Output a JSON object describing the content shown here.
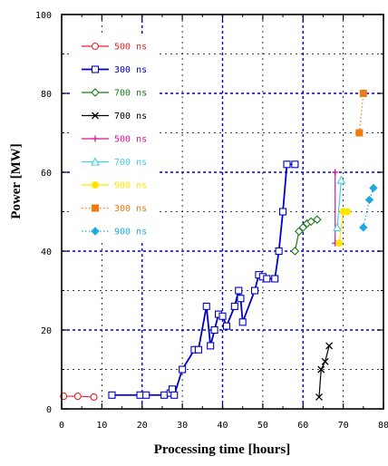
{
  "colors": {
    "background": "#ffffff",
    "axis": "#000000",
    "grid_major": "#0000cc",
    "grid_minor": "#000000"
  },
  "chart_data": {
    "type": "line",
    "title": "",
    "xlabel": "Processing time [hours]",
    "ylabel": "Power  [MW]",
    "xlim": [
      0,
      80
    ],
    "ylim": [
      0,
      100
    ],
    "x_ticks": [
      0,
      10,
      20,
      30,
      40,
      50,
      60,
      70,
      80
    ],
    "y_ticks": [
      0,
      20,
      40,
      60,
      80,
      100
    ],
    "x_tick_labels": [
      "0",
      "10",
      "20",
      "30",
      "40",
      "50",
      "60",
      "70",
      "80"
    ],
    "y_tick_labels": [
      "0",
      "20",
      "40",
      "60",
      "80",
      "100"
    ],
    "grid": true,
    "legend_position": "top-left",
    "series": [
      {
        "name": "500  ns",
        "color": "#e8232a",
        "marker": "circle-open",
        "line": "solid",
        "points": [
          [
            0.5,
            3.2
          ],
          [
            4,
            3.2
          ],
          [
            8,
            3
          ]
        ]
      },
      {
        "name": "300  ns",
        "color": "#0000c8",
        "marker": "square-open",
        "line": "solid",
        "points": [
          [
            12.5,
            3.5
          ],
          [
            19.5,
            3.5
          ],
          [
            21,
            3.5
          ],
          [
            25.5,
            3.5
          ],
          [
            27,
            4
          ],
          [
            27.5,
            5
          ],
          [
            28,
            3.5
          ],
          [
            30,
            10
          ],
          [
            33,
            15
          ],
          [
            34,
            15
          ],
          [
            36,
            26
          ],
          [
            37,
            16
          ],
          [
            38,
            20
          ],
          [
            39,
            24
          ],
          [
            40,
            23.5
          ],
          [
            41,
            21
          ],
          [
            43,
            26
          ],
          [
            44,
            30
          ],
          [
            44.5,
            28
          ],
          [
            45,
            22
          ],
          [
            48,
            30
          ],
          [
            49,
            34
          ],
          [
            50,
            33.5
          ],
          [
            51,
            33
          ],
          [
            53,
            33
          ],
          [
            54,
            40
          ],
          [
            55,
            50
          ],
          [
            56,
            62
          ],
          [
            58,
            62
          ]
        ]
      },
      {
        "name": "700  ns",
        "color": "#1a7a1a",
        "marker": "diamond-open",
        "line": "solid",
        "points": [
          [
            58,
            40
          ],
          [
            59,
            45
          ],
          [
            60,
            46
          ],
          [
            61,
            47
          ],
          [
            62,
            47.5
          ],
          [
            63.5,
            48
          ]
        ]
      },
      {
        "name": "700 ns",
        "color": "#000000",
        "marker": "x",
        "line": "solid",
        "points": [
          [
            64,
            3
          ],
          [
            64.5,
            10
          ],
          [
            65.5,
            12
          ],
          [
            66.5,
            16
          ]
        ]
      },
      {
        "name": "500  ns",
        "color": "#e0129a",
        "marker": "plus",
        "line": "solid",
        "points": [
          [
            68,
            42
          ],
          [
            68,
            60
          ]
        ]
      },
      {
        "name": "700  ns",
        "color": "#40d0e8",
        "marker": "triangle-open",
        "line": "solid",
        "points": [
          [
            68.5,
            46
          ],
          [
            69.5,
            58
          ]
        ]
      },
      {
        "name": "900  ns",
        "color": "#ffe600",
        "marker": "circle-filled",
        "line": "solid",
        "points": [
          [
            69,
            42
          ],
          [
            70,
            50
          ],
          [
            71,
            50
          ]
        ]
      },
      {
        "name": "300  ns",
        "color": "#f07a10",
        "marker": "square-filled",
        "line": "dotted",
        "points": [
          [
            74,
            70
          ],
          [
            75,
            80
          ]
        ]
      },
      {
        "name": "900  ns",
        "color": "#20a8e0",
        "marker": "diamond-filled",
        "line": "dotted",
        "points": [
          [
            75,
            46
          ],
          [
            76.5,
            53
          ],
          [
            77.5,
            56
          ]
        ]
      }
    ]
  }
}
